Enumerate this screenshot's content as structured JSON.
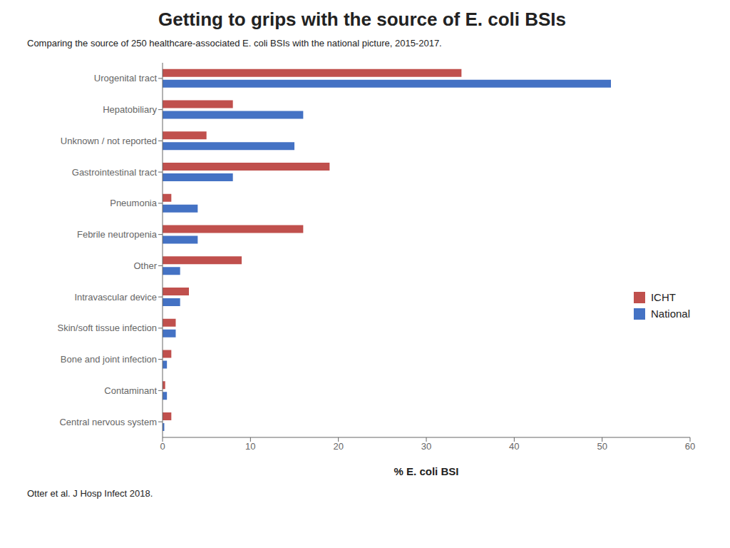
{
  "chart_data": {
    "type": "bar",
    "orientation": "horizontal",
    "title": "Getting to grips with the source of E. coli BSIs",
    "subtitle": "Comparing the source of 250 healthcare-associated E. coli BSIs with the national picture, 2015-2017.",
    "x_label": "% E. coli BSI",
    "annotations": [
      "Otter et al. J Hosp Infect 2018."
    ],
    "categories": [
      "Urogenital tract",
      "Hepatobiliary",
      "Unknown / not reported",
      "Gastrointestinal tract",
      "Pneumonia",
      "Febrile neutropenia",
      "Other",
      "Intravascular device",
      "Skin/soft tissue infection",
      "Bone and joint infection",
      "Contaminant",
      "Central nervous system"
    ],
    "series": [
      {
        "name": "ICHT",
        "color": "#C0504D",
        "values": [
          34,
          8,
          5,
          19,
          1,
          16,
          9,
          3,
          1.5,
          1,
          0.3,
          1
        ]
      },
      {
        "name": "National",
        "color": "#4472C4",
        "values": [
          51,
          16,
          15,
          8,
          4,
          4,
          2,
          2,
          1.5,
          0.5,
          0.5,
          0.2
        ]
      }
    ],
    "xlim": [
      0,
      60
    ],
    "xticks": [
      0,
      10,
      20,
      30,
      40,
      50,
      60
    ],
    "grid": false,
    "legend": "right"
  }
}
